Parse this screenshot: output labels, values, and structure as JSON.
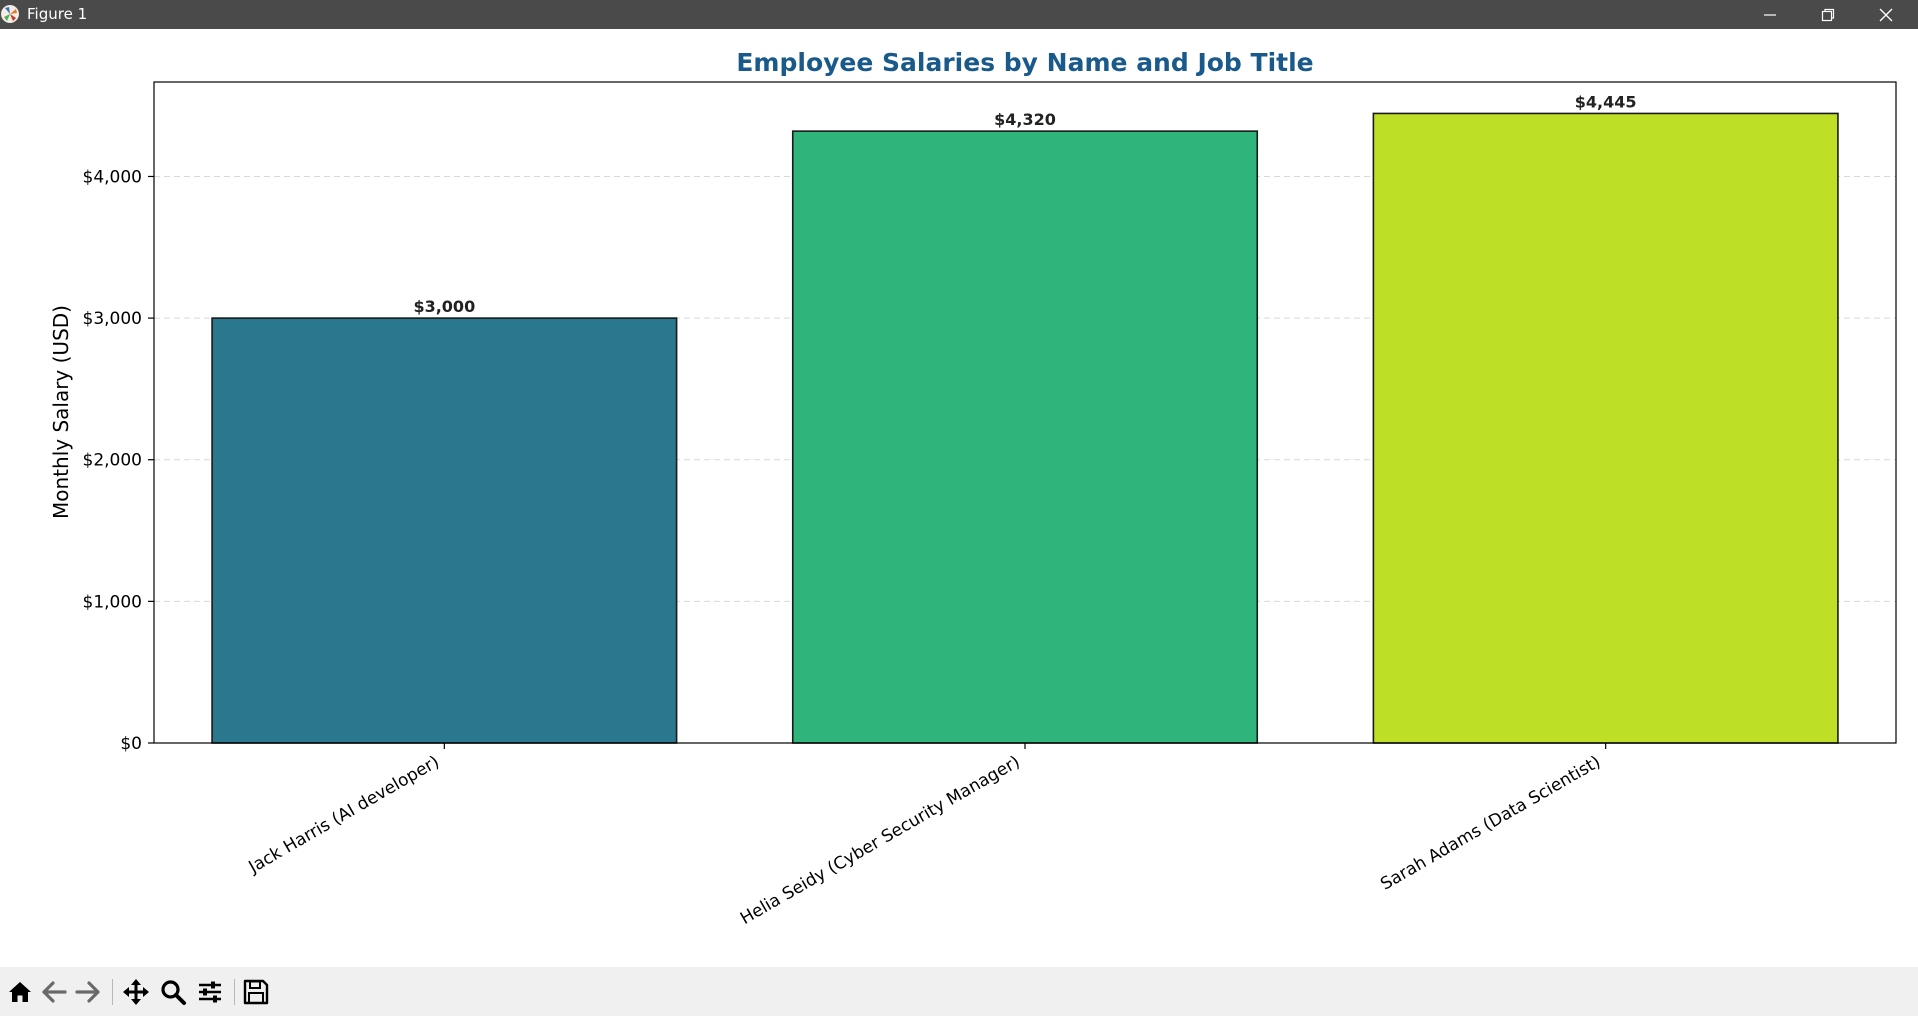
{
  "window": {
    "title": "Figure 1",
    "controls": [
      "minimize",
      "restore",
      "close"
    ]
  },
  "toolbar": {
    "buttons": [
      {
        "name": "home-button",
        "icon": "home-icon"
      },
      {
        "name": "back-button",
        "icon": "arrow-left-icon"
      },
      {
        "name": "forward-button",
        "icon": "arrow-right-icon"
      },
      {
        "name": "pan-button",
        "icon": "move-icon"
      },
      {
        "name": "zoom-button",
        "icon": "magnifier-icon"
      },
      {
        "name": "configure-subplots-button",
        "icon": "sliders-icon"
      },
      {
        "name": "save-button",
        "icon": "floppy-disk-icon"
      }
    ]
  },
  "chart_data": {
    "type": "bar",
    "title": "Employee Salaries by Name and Job Title",
    "xlabel": "",
    "ylabel": "Monthly Salary (USD)",
    "categories": [
      "Jack Harris (AI developer)",
      "Helia Seidy (Cyber Security Manager)",
      "Sarah Adams (Data Scientist)"
    ],
    "values": [
      3000,
      4320,
      4445
    ],
    "value_labels": [
      "$3,000",
      "$4,320",
      "$4,445"
    ],
    "bar_colors": [
      "#2a788e",
      "#2fb47c",
      "#bddf26"
    ],
    "ylim": [
      0,
      4667
    ],
    "yticks": [
      0,
      1000,
      2000,
      3000,
      4000
    ],
    "ytick_labels": [
      "$0",
      "$1,000",
      "$2,000",
      "$3,000",
      "$4,000"
    ],
    "grid": "y-axis dashed",
    "title_color": "#1a5a8a",
    "legend": "none"
  }
}
